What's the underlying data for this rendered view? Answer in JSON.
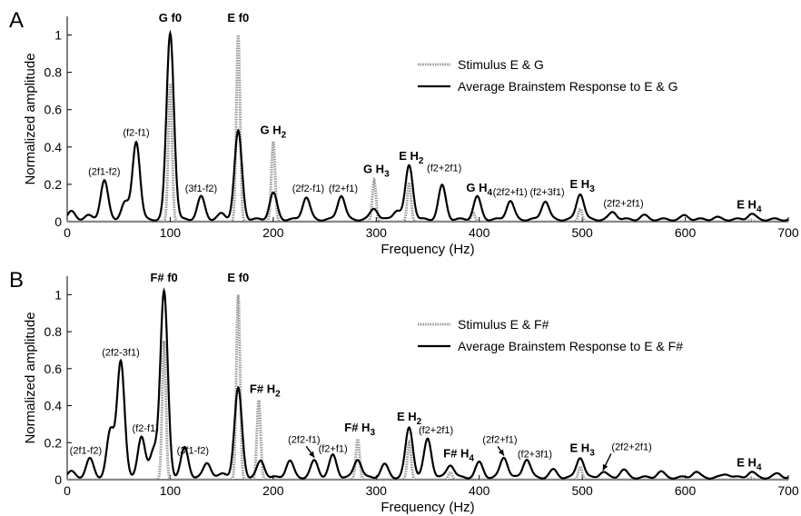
{
  "chart_data": [
    {
      "panel": "A",
      "type": "line",
      "xlabel": "Frequency (Hz)",
      "ylabel": "Normalized amplitude",
      "xlim": [
        0,
        700
      ],
      "ylim": [
        0,
        1.1
      ],
      "xticks": [
        0,
        100,
        200,
        300,
        400,
        500,
        600,
        700
      ],
      "yticks": [
        0,
        0.2,
        0.4,
        0.6,
        0.8,
        1
      ],
      "legend_position": "upper-right",
      "series": [
        {
          "name": "Stimulus E & G",
          "style": "dotted-gray",
          "peaks": [
            [
              100,
              0.74
            ],
            [
              166,
              1.0
            ],
            [
              200,
              0.43
            ],
            [
              298,
              0.22
            ],
            [
              332,
              0.21
            ],
            [
              394,
              0.05
            ],
            [
              498,
              0.07
            ],
            [
              664,
              0.01
            ]
          ]
        },
        {
          "name": "Average Brainstem Response to E & G",
          "style": "solid-black",
          "peaks": [
            [
              4,
              0.04
            ],
            [
              20,
              0.02
            ],
            [
              36,
              0.21
            ],
            [
              56,
              0.09
            ],
            [
              67,
              0.42
            ],
            [
              100,
              1.0
            ],
            [
              130,
              0.12
            ],
            [
              150,
              0.03
            ],
            [
              166,
              0.47
            ],
            [
              200,
              0.14
            ],
            [
              232,
              0.12
            ],
            [
              266,
              0.13
            ],
            [
              298,
              0.06
            ],
            [
              320,
              0.05
            ],
            [
              332,
              0.29
            ],
            [
              364,
              0.18
            ],
            [
              398,
              0.12
            ],
            [
              430,
              0.1
            ],
            [
              464,
              0.1
            ],
            [
              498,
              0.14
            ],
            [
              530,
              0.04
            ],
            [
              560,
              0.02
            ],
            [
              600,
              0.02
            ],
            [
              630,
              0.01
            ],
            [
              664,
              0.03
            ]
          ]
        }
      ],
      "annotations": [
        {
          "text": "G f0",
          "x": 100,
          "y": 1.07,
          "bold": true
        },
        {
          "text": "E f0",
          "x": 166,
          "y": 1.07,
          "bold": true
        },
        {
          "text": "(2f1-f2)",
          "x": 36,
          "y": 0.25
        },
        {
          "text": "(f2-f1)",
          "x": 67,
          "y": 0.46
        },
        {
          "text": "(3f1-f2)",
          "x": 130,
          "y": 0.16
        },
        {
          "text": "G H",
          "sub": "2",
          "x": 200,
          "y": 0.47,
          "bold": true
        },
        {
          "text": "(2f2-f1)",
          "x": 234,
          "y": 0.16
        },
        {
          "text": "(f2+f1)",
          "x": 268,
          "y": 0.16
        },
        {
          "text": "G H",
          "sub": "3",
          "x": 300,
          "y": 0.26,
          "bold": true
        },
        {
          "text": "E H",
          "sub": "2",
          "x": 334,
          "y": 0.33,
          "bold": true
        },
        {
          "text": "(f2+2f1)",
          "x": 366,
          "y": 0.27
        },
        {
          "text": "G H",
          "sub": "4",
          "x": 400,
          "y": 0.16,
          "bold": true
        },
        {
          "text": "(2f2+f1)",
          "x": 430,
          "y": 0.14
        },
        {
          "text": "(f2+3f1)",
          "x": 466,
          "y": 0.14
        },
        {
          "text": "E H",
          "sub": "3",
          "x": 500,
          "y": 0.18,
          "bold": true
        },
        {
          "text": "(2f2+2f1)",
          "x": 540,
          "y": 0.08
        },
        {
          "text": "E H",
          "sub": "4",
          "x": 662,
          "y": 0.07,
          "bold": true
        }
      ]
    },
    {
      "panel": "B",
      "type": "line",
      "xlabel": "Frequency (Hz)",
      "ylabel": "Normalized amplitude",
      "xlim": [
        0,
        700
      ],
      "ylim": [
        0,
        1.1
      ],
      "xticks": [
        0,
        100,
        200,
        300,
        400,
        500,
        600,
        700
      ],
      "yticks": [
        0,
        0.2,
        0.4,
        0.6,
        0.8,
        1
      ],
      "legend_position": "upper-right",
      "series": [
        {
          "name": "Stimulus E & F#",
          "style": "dotted-gray",
          "peaks": [
            [
              94,
              0.75
            ],
            [
              166,
              1.0
            ],
            [
              186,
              0.43
            ],
            [
              282,
              0.22
            ],
            [
              332,
              0.2
            ],
            [
              372,
              0.04
            ],
            [
              498,
              0.07
            ],
            [
              664,
              0.01
            ]
          ]
        },
        {
          "name": "Average Brainstem Response to E & F#",
          "style": "solid-black",
          "peaks": [
            [
              4,
              0.03
            ],
            [
              22,
              0.1
            ],
            [
              42,
              0.25
            ],
            [
              52,
              0.63
            ],
            [
              72,
              0.22
            ],
            [
              84,
              0.15
            ],
            [
              94,
              1.0
            ],
            [
              114,
              0.16
            ],
            [
              136,
              0.08
            ],
            [
              152,
              0.02
            ],
            [
              166,
              0.48
            ],
            [
              188,
              0.09
            ],
            [
              216,
              0.09
            ],
            [
              240,
              0.09
            ],
            [
              258,
              0.12
            ],
            [
              282,
              0.1
            ],
            [
              308,
              0.07
            ],
            [
              332,
              0.27
            ],
            [
              350,
              0.21
            ],
            [
              372,
              0.07
            ],
            [
              400,
              0.08
            ],
            [
              424,
              0.11
            ],
            [
              446,
              0.1
            ],
            [
              472,
              0.04
            ],
            [
              498,
              0.11
            ],
            [
              520,
              0.03
            ],
            [
              540,
              0.04
            ],
            [
              576,
              0.03
            ],
            [
              610,
              0.03
            ],
            [
              640,
              0.02
            ],
            [
              664,
              0.03
            ],
            [
              690,
              0.02
            ]
          ]
        }
      ],
      "annotations": [
        {
          "text": "F# f0",
          "x": 94,
          "y": 1.07,
          "bold": true
        },
        {
          "text": "E f0",
          "x": 166,
          "y": 1.07,
          "bold": true
        },
        {
          "text": "(2f1-f2)",
          "x": 18,
          "y": 0.14
        },
        {
          "text": "(2f2-3f1)",
          "x": 52,
          "y": 0.67
        },
        {
          "text": "(f2-f1)",
          "x": 76,
          "y": 0.26
        },
        {
          "text": "(3f1-f2)",
          "x": 122,
          "y": 0.14
        },
        {
          "text": "F# H",
          "sub": "2",
          "x": 192,
          "y": 0.47,
          "bold": true
        },
        {
          "text": "(2f2-f1)",
          "x": 230,
          "y": 0.2
        },
        {
          "text": "(f2+f1)",
          "x": 258,
          "y": 0.15
        },
        {
          "text": "F# H",
          "sub": "3",
          "x": 284,
          "y": 0.26,
          "bold": true
        },
        {
          "text": "E H",
          "sub": "2",
          "x": 332,
          "y": 0.32,
          "bold": true
        },
        {
          "text": "(f2+2f1)",
          "x": 358,
          "y": 0.25
        },
        {
          "text": "F# H",
          "sub": "4",
          "x": 380,
          "y": 0.12,
          "bold": true
        },
        {
          "text": "(2f2+f1)",
          "x": 420,
          "y": 0.2
        },
        {
          "text": "(f2+3f1)",
          "x": 454,
          "y": 0.12
        },
        {
          "text": "E H",
          "sub": "3",
          "x": 500,
          "y": 0.15,
          "bold": true
        },
        {
          "text": "(2f2+2f1)",
          "x": 548,
          "y": 0.16
        },
        {
          "text": "E H",
          "sub": "4",
          "x": 662,
          "y": 0.07,
          "bold": true
        }
      ],
      "arrows": [
        {
          "from": [
            232,
            0.18
          ],
          "to": [
            240,
            0.12
          ]
        },
        {
          "from": [
            418,
            0.18
          ],
          "to": [
            424,
            0.13
          ]
        },
        {
          "from": [
            528,
            0.14
          ],
          "to": [
            520,
            0.05
          ]
        }
      ]
    }
  ]
}
